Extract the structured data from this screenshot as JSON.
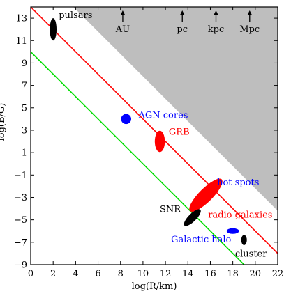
{
  "chart_data": {
    "type": "scatter",
    "title": "",
    "xlabel": "log(R/km)",
    "ylabel": "log(B/G)",
    "xlim": [
      0,
      22
    ],
    "ylim": [
      -9,
      14
    ],
    "x_ticks": [
      0,
      2,
      4,
      6,
      8,
      10,
      12,
      14,
      16,
      18,
      20,
      22
    ],
    "y_ticks": [
      -9,
      -7,
      -5,
      -3,
      -1,
      1,
      3,
      5,
      7,
      9,
      11,
      13
    ],
    "y_tick_labels": [
      "−9",
      "−7",
      "−5",
      "−3",
      "−1",
      "1",
      "3",
      "5",
      "7",
      "9",
      "11",
      "13"
    ],
    "grid": false,
    "shaded_region": {
      "color": "#bebebe",
      "polygon": [
        [
          3.8,
          14
        ],
        [
          22,
          14
        ],
        [
          22,
          -4.2
        ]
      ]
    },
    "lines": [
      {
        "color": "#ff0000",
        "points": [
          [
            0,
            14
          ],
          [
            22,
            -8
          ]
        ]
      },
      {
        "color": "#00dd00",
        "points": [
          [
            0,
            10
          ],
          [
            19,
            -9
          ]
        ]
      }
    ],
    "scale_markers": [
      {
        "label": "AU",
        "x": 8.2
      },
      {
        "label": "pc",
        "x": 13.5
      },
      {
        "label": "kpc",
        "x": 16.5
      },
      {
        "label": "Mpc",
        "x": 19.5
      }
    ],
    "objects": [
      {
        "label": "pulsars",
        "x": 2,
        "y": 12,
        "rx": 0.3,
        "ry": 1.0,
        "angle": 0,
        "color": "#000000",
        "label_color": "#000000",
        "label_x": 2.5,
        "label_y": 13.0
      },
      {
        "label": "AGN cores",
        "x": 8.5,
        "y": 4,
        "rx": 0.45,
        "ry": 0.45,
        "angle": 0,
        "color": "#0000ff",
        "label_color": "#0000ff",
        "label_x": 9.6,
        "label_y": 4.1
      },
      {
        "label": "GRB",
        "x": 11.5,
        "y": 2,
        "rx": 0.45,
        "ry": 0.95,
        "angle": 0,
        "color": "#ff0000",
        "label_color": "#ff0000",
        "label_x": 12.3,
        "label_y": 2.6
      },
      {
        "label": "hot spots",
        "x": 16,
        "y": -2.3,
        "rx": 0.45,
        "ry": 0.45,
        "angle": 0,
        "color": "#0000ff",
        "label_color": "#0000ff",
        "label_x": 16.6,
        "label_y": -1.9
      },
      {
        "label": "radio galaxies",
        "x": 15.6,
        "y": -2.8,
        "rx": 2.0,
        "ry": 0.6,
        "angle": -45,
        "color": "#ff0000",
        "label_color": "#ff0000",
        "label_x": 15.8,
        "label_y": -4.8
      },
      {
        "label": "SNR",
        "x": 14.4,
        "y": -4.8,
        "rx": 1.0,
        "ry": 0.35,
        "angle": -45,
        "color": "#000000",
        "label_color": "#000000",
        "label_x": 11.5,
        "label_y": -4.3
      },
      {
        "label": "Galactic halo",
        "x": 18,
        "y": -6.0,
        "rx": 0.55,
        "ry": 0.25,
        "angle": 0,
        "color": "#0000ff",
        "label_color": "#0000ff",
        "label_x": 12.5,
        "label_y": -7.0
      },
      {
        "label": "cluster",
        "x": 19,
        "y": -6.8,
        "rx": 0.25,
        "ry": 0.45,
        "angle": 0,
        "color": "#000000",
        "label_color": "#000000",
        "label_x": 18.2,
        "label_y": -8.3
      }
    ]
  }
}
